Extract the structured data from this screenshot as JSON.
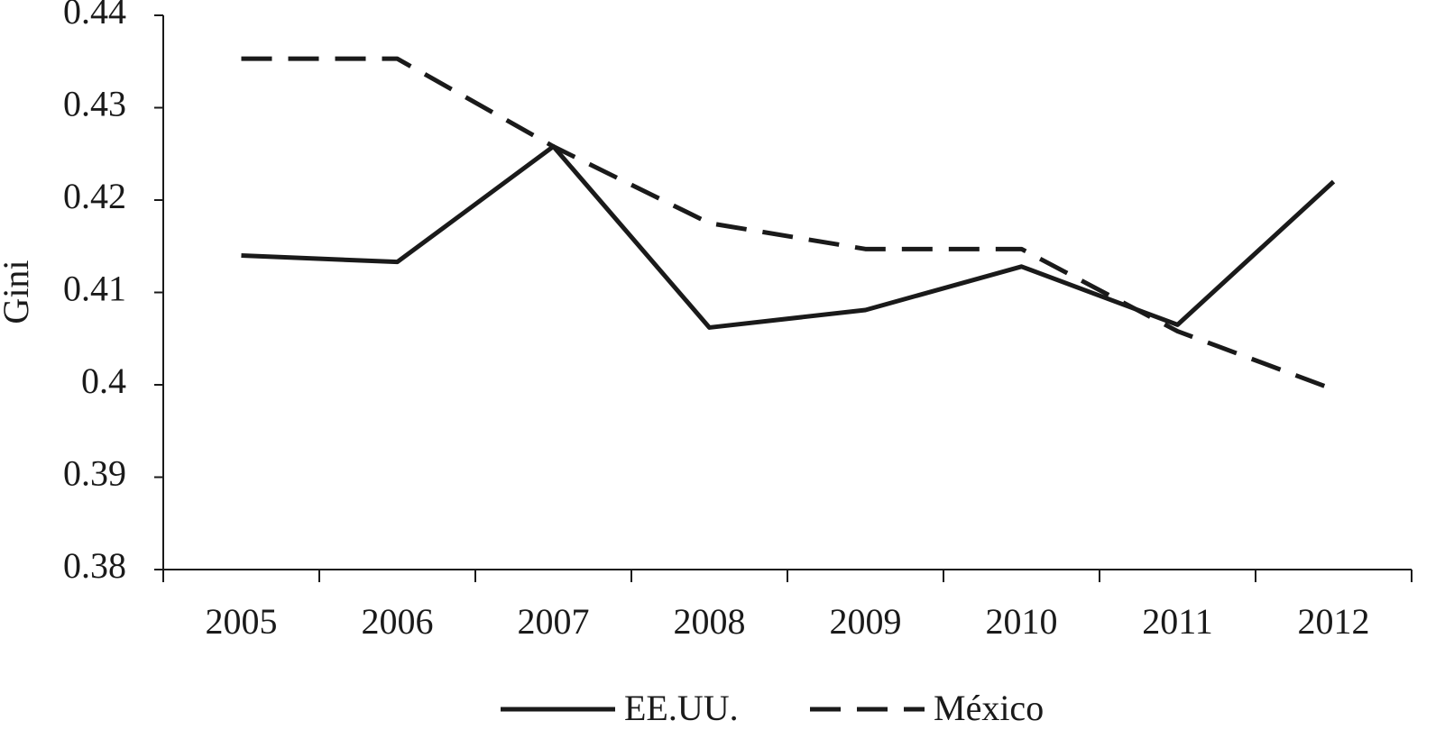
{
  "chart_data": {
    "type": "line",
    "y_label": "Gini",
    "categories": [
      "2005",
      "2006",
      "2007",
      "2008",
      "2009",
      "2010",
      "2011",
      "2012"
    ],
    "series": [
      {
        "name": "EE.UU.",
        "color": "#1a1a1a",
        "style": "solid",
        "values": [
          0.414,
          0.4133,
          0.4258,
          0.4062,
          0.4081,
          0.4128,
          0.4065,
          0.422
        ]
      },
      {
        "name": "México",
        "color": "#1a1a1a",
        "style": "dashed",
        "values": [
          0.4353,
          0.4353,
          0.4258,
          0.4175,
          0.4147,
          0.4147,
          0.4058,
          0.3995
        ]
      }
    ],
    "ylim": [
      0.38,
      0.44
    ],
    "yticks": [
      0.38,
      0.39,
      0.4,
      0.41,
      0.42,
      0.43,
      0.44
    ],
    "grid": false,
    "legend": "bottom"
  }
}
